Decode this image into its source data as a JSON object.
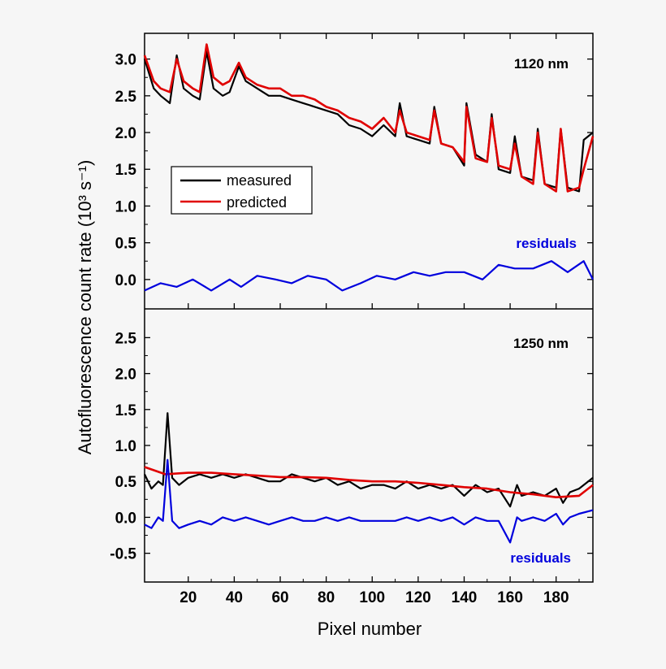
{
  "chart_data": {
    "type": "line",
    "ylabel": "Autofluorescence count rate (10³ s⁻¹)",
    "xlabel": "Pixel number",
    "xlim": [
      1,
      196
    ],
    "x_ticks": [
      20,
      40,
      60,
      80,
      100,
      120,
      140,
      160,
      180
    ],
    "legend": {
      "position": "left",
      "entries": [
        "measured",
        "predicted"
      ]
    },
    "colors": {
      "measured": "#000000",
      "predicted": "#e00000",
      "residuals": "#0000dd"
    },
    "panels": [
      {
        "name": "top",
        "label": "1120 nm",
        "residuals_label": "residuals",
        "ylim": [
          -0.4,
          3.35
        ],
        "y_ticks": [
          "0.0",
          "0.5",
          "1.0",
          "1.5",
          "2.0",
          "2.5",
          "3.0"
        ],
        "series": [
          {
            "name": "measured",
            "x": [
              1,
              5,
              8,
              12,
              15,
              18,
              22,
              25,
              28,
              31,
              35,
              38,
              42,
              45,
              50,
              55,
              60,
              65,
              70,
              75,
              80,
              85,
              90,
              95,
              100,
              105,
              110,
              112,
              115,
              120,
              125,
              127,
              130,
              135,
              140,
              141,
              145,
              150,
              152,
              155,
              160,
              162,
              165,
              170,
              172,
              175,
              180,
              182,
              185,
              190,
              192,
              196
            ],
            "y": [
              3.0,
              2.6,
              2.5,
              2.4,
              3.05,
              2.6,
              2.5,
              2.45,
              3.1,
              2.6,
              2.5,
              2.55,
              2.9,
              2.7,
              2.6,
              2.5,
              2.5,
              2.45,
              2.4,
              2.35,
              2.3,
              2.25,
              2.1,
              2.05,
              1.95,
              2.1,
              1.95,
              2.4,
              1.95,
              1.9,
              1.85,
              2.35,
              1.85,
              1.8,
              1.55,
              2.4,
              1.7,
              1.6,
              2.25,
              1.5,
              1.45,
              1.95,
              1.4,
              1.35,
              2.05,
              1.3,
              1.25,
              2.05,
              1.25,
              1.2,
              1.9,
              2.0
            ]
          },
          {
            "name": "predicted",
            "x": [
              1,
              5,
              8,
              12,
              15,
              18,
              22,
              25,
              28,
              31,
              35,
              38,
              42,
              45,
              50,
              55,
              60,
              65,
              70,
              75,
              80,
              85,
              90,
              95,
              100,
              105,
              110,
              112,
              115,
              120,
              125,
              127,
              130,
              135,
              140,
              141,
              145,
              150,
              152,
              155,
              160,
              162,
              165,
              170,
              172,
              175,
              180,
              182,
              185,
              190,
              192,
              196
            ],
            "y": [
              3.05,
              2.7,
              2.6,
              2.55,
              3.0,
              2.7,
              2.6,
              2.55,
              3.2,
              2.75,
              2.65,
              2.7,
              2.95,
              2.75,
              2.65,
              2.6,
              2.6,
              2.5,
              2.5,
              2.45,
              2.35,
              2.3,
              2.2,
              2.15,
              2.05,
              2.2,
              2.0,
              2.3,
              2.0,
              1.95,
              1.9,
              2.3,
              1.85,
              1.8,
              1.6,
              2.35,
              1.65,
              1.6,
              2.2,
              1.55,
              1.5,
              1.85,
              1.4,
              1.3,
              2.0,
              1.3,
              1.2,
              2.05,
              1.2,
              1.25,
              1.5,
              1.95
            ]
          },
          {
            "name": "residuals",
            "x": [
              1,
              8,
              15,
              22,
              30,
              38,
              43,
              50,
              58,
              65,
              72,
              80,
              87,
              95,
              102,
              110,
              118,
              125,
              132,
              140,
              148,
              155,
              162,
              170,
              178,
              185,
              192,
              196
            ],
            "y": [
              -0.15,
              -0.05,
              -0.1,
              0.0,
              -0.15,
              0.0,
              -0.1,
              0.05,
              0.0,
              -0.05,
              0.05,
              0.0,
              -0.15,
              -0.05,
              0.05,
              0.0,
              0.1,
              0.05,
              0.1,
              0.1,
              0.0,
              0.2,
              0.15,
              0.15,
              0.25,
              0.1,
              0.25,
              0.0
            ]
          }
        ]
      },
      {
        "name": "bottom",
        "label": "1250 nm",
        "residuals_label": "residuals",
        "ylim": [
          -0.9,
          2.9
        ],
        "y_ticks": [
          "-0.5",
          "0.0",
          "0.5",
          "1.0",
          "1.5",
          "2.0",
          "2.5"
        ],
        "series": [
          {
            "name": "measured",
            "x": [
              1,
              4,
              7,
              9,
              11,
              13,
              16,
              20,
              25,
              30,
              35,
              40,
              45,
              50,
              55,
              60,
              65,
              70,
              75,
              80,
              85,
              90,
              95,
              100,
              105,
              110,
              115,
              120,
              125,
              130,
              135,
              140,
              145,
              150,
              155,
              160,
              163,
              165,
              170,
              175,
              180,
              183,
              186,
              190,
              196
            ],
            "y": [
              0.6,
              0.4,
              0.5,
              0.45,
              1.45,
              0.55,
              0.45,
              0.55,
              0.6,
              0.55,
              0.6,
              0.55,
              0.6,
              0.55,
              0.5,
              0.5,
              0.6,
              0.55,
              0.5,
              0.55,
              0.45,
              0.5,
              0.4,
              0.45,
              0.45,
              0.4,
              0.5,
              0.4,
              0.45,
              0.4,
              0.45,
              0.3,
              0.45,
              0.35,
              0.4,
              0.15,
              0.45,
              0.3,
              0.35,
              0.3,
              0.4,
              0.2,
              0.35,
              0.4,
              0.55
            ]
          },
          {
            "name": "predicted",
            "x": [
              1,
              10,
              20,
              30,
              40,
              50,
              60,
              70,
              80,
              90,
              100,
              110,
              120,
              130,
              140,
              150,
              160,
              170,
              180,
              190,
              196
            ],
            "y": [
              0.7,
              0.6,
              0.62,
              0.62,
              0.6,
              0.58,
              0.56,
              0.56,
              0.55,
              0.52,
              0.5,
              0.5,
              0.48,
              0.45,
              0.42,
              0.4,
              0.35,
              0.32,
              0.28,
              0.3,
              0.45
            ]
          },
          {
            "name": "residuals",
            "x": [
              1,
              4,
              7,
              9,
              11,
              13,
              16,
              20,
              25,
              30,
              35,
              40,
              45,
              50,
              55,
              60,
              65,
              70,
              75,
              80,
              85,
              90,
              95,
              100,
              105,
              110,
              115,
              120,
              125,
              130,
              135,
              140,
              145,
              150,
              155,
              160,
              163,
              165,
              170,
              175,
              180,
              183,
              186,
              190,
              196
            ],
            "y": [
              -0.1,
              -0.15,
              0.0,
              -0.05,
              0.8,
              -0.05,
              -0.15,
              -0.1,
              -0.05,
              -0.1,
              0.0,
              -0.05,
              0.0,
              -0.05,
              -0.1,
              -0.05,
              0.0,
              -0.05,
              -0.05,
              0.0,
              -0.05,
              0.0,
              -0.05,
              -0.05,
              -0.05,
              -0.05,
              0.0,
              -0.05,
              0.0,
              -0.05,
              0.0,
              -0.1,
              0.0,
              -0.05,
              -0.05,
              -0.35,
              0.0,
              -0.05,
              0.0,
              -0.05,
              0.05,
              -0.1,
              0.0,
              0.05,
              0.1
            ]
          }
        ]
      }
    ]
  }
}
